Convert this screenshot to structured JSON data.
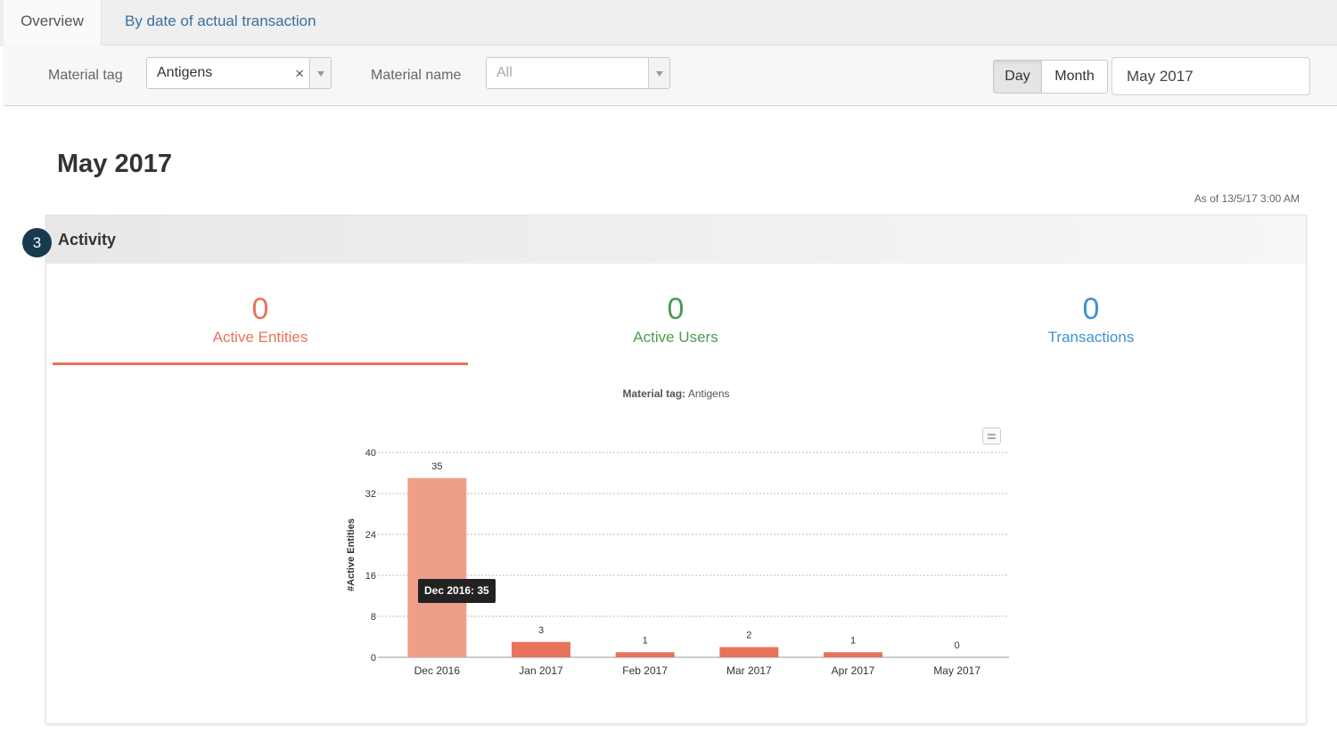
{
  "tabs": [
    {
      "label": "Overview",
      "active": true
    },
    {
      "label": "By date of actual transaction",
      "active": false
    }
  ],
  "filters": {
    "material_tag_label": "Material tag",
    "material_tag_value": "Antigens",
    "clear_glyph": "×",
    "material_name_label": "Material name",
    "material_name_value": "All",
    "period_day": "Day",
    "period_month": "Month",
    "period_selected": "Day",
    "date_value": "May 2017"
  },
  "main": {
    "title": "May 2017",
    "as_of": "As of 13/5/17 3:00 AM"
  },
  "activity": {
    "step": "3",
    "title": "Activity",
    "kpis": [
      {
        "value": "0",
        "label": "Active Entities",
        "color": "#e8735c"
      },
      {
        "value": "0",
        "label": "Active Users",
        "color": "#4c9a53"
      },
      {
        "value": "0",
        "label": "Transactions",
        "color": "#3f93cf"
      }
    ],
    "chart_subtitle_label": "Material tag:",
    "chart_subtitle_value": "Antigens",
    "tooltip": "Dec 2016: 35"
  },
  "chart_data": {
    "type": "bar",
    "categories": [
      "Dec 2016",
      "Jan 2017",
      "Feb 2017",
      "Mar 2017",
      "Apr 2017",
      "May 2017"
    ],
    "values": [
      35,
      3,
      1,
      2,
      1,
      0
    ],
    "ylabel": "#Active Entities",
    "ylim": [
      0,
      40
    ],
    "yticks": [
      0,
      8,
      16,
      24,
      32,
      40
    ],
    "grid": true,
    "bar_color": "#e8735c",
    "highlight_color": "#ee9f8a",
    "highlighted_index": 0
  }
}
